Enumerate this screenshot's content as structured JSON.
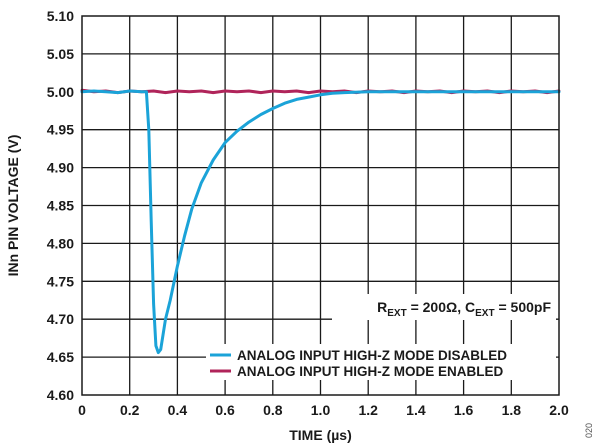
{
  "chart_data": {
    "type": "line",
    "title": "",
    "xlabel": "TIME (µs)",
    "ylabel": "INn PIN VOLTAGE (V)",
    "xlim": [
      0,
      2.0
    ],
    "ylim": [
      4.6,
      5.1
    ],
    "x_ticks": [
      "0",
      "0.2",
      "0.4",
      "0.6",
      "0.8",
      "1.0",
      "1.2",
      "1.4",
      "1.6",
      "1.8",
      "2.0"
    ],
    "y_ticks": [
      "5.10",
      "5.05",
      "5.00",
      "4.95",
      "4.90",
      "4.85",
      "4.80",
      "4.75",
      "4.70",
      "4.65",
      "4.60"
    ],
    "grid": true,
    "annotation": {
      "r_main": "R",
      "r_sub": "EXT",
      "r_value": " = 200Ω, C",
      "c_sub": "EXT",
      "c_value": " = 500pF"
    },
    "legend_position": "bottom-right",
    "series": [
      {
        "name": "ANALOG INPUT HIGH-Z MODE DISABLED",
        "color": "#1ba3d8",
        "x": [
          0,
          0.05,
          0.1,
          0.15,
          0.2,
          0.25,
          0.27,
          0.28,
          0.29,
          0.3,
          0.31,
          0.32,
          0.33,
          0.34,
          0.35,
          0.37,
          0.4,
          0.43,
          0.46,
          0.5,
          0.55,
          0.6,
          0.65,
          0.7,
          0.75,
          0.8,
          0.85,
          0.9,
          0.95,
          1.0,
          1.05,
          1.1,
          1.2,
          1.3,
          1.4,
          1.5,
          1.6,
          1.7,
          1.8,
          1.9,
          2.0
        ],
        "y": [
          5.0,
          5.001,
          5.0,
          4.999,
          5.001,
          5.0,
          5.0,
          4.95,
          4.83,
          4.72,
          4.665,
          4.656,
          4.66,
          4.68,
          4.7,
          4.725,
          4.77,
          4.81,
          4.845,
          4.88,
          4.91,
          4.933,
          4.948,
          4.96,
          4.97,
          4.978,
          4.985,
          4.99,
          4.993,
          4.996,
          4.998,
          4.999,
          5.0,
          5.0,
          5.0,
          5.0,
          5.0,
          5.0,
          5.0,
          5.0,
          5.0
        ]
      },
      {
        "name": "ANALOG INPUT HIGH-Z MODE ENABLED",
        "color": "#b0245a",
        "x": [
          0,
          0.05,
          0.1,
          0.15,
          0.2,
          0.25,
          0.3,
          0.35,
          0.4,
          0.45,
          0.5,
          0.55,
          0.6,
          0.65,
          0.7,
          0.75,
          0.8,
          0.85,
          0.9,
          0.95,
          1.0,
          1.05,
          1.1,
          1.15,
          1.2,
          1.25,
          1.3,
          1.35,
          1.4,
          1.45,
          1.5,
          1.55,
          1.6,
          1.65,
          1.7,
          1.75,
          1.8,
          1.85,
          1.9,
          1.95,
          2.0
        ],
        "y": [
          5.002,
          5.0,
          5.001,
          4.999,
          5.001,
          5.0,
          5.001,
          4.999,
          5.001,
          5.0,
          5.001,
          4.999,
          5.001,
          5.0,
          5.001,
          4.999,
          5.001,
          5.0,
          5.001,
          4.999,
          5.001,
          5.0,
          5.001,
          4.999,
          5.001,
          5.0,
          5.001,
          4.999,
          5.001,
          5.0,
          5.001,
          4.999,
          5.001,
          5.0,
          5.001,
          4.999,
          5.001,
          5.0,
          5.001,
          4.999,
          5.001
        ]
      }
    ]
  },
  "figure_id": "020"
}
